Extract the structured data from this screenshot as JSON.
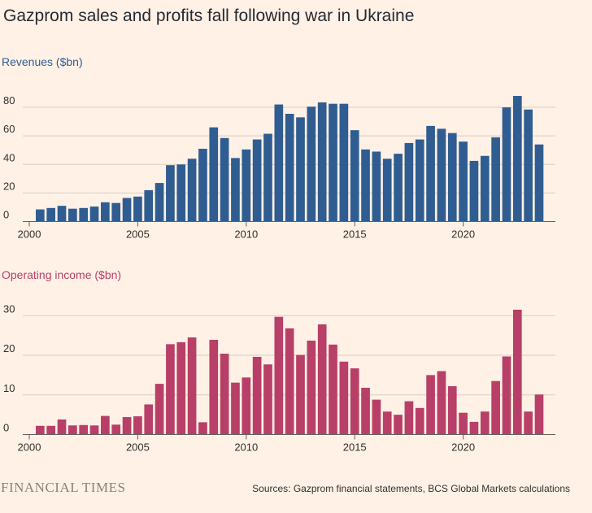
{
  "title": "Gazprom sales and profits fall following war in Ukraine",
  "source": "Sources: Gazprom financial statements, BCS Global Markets calculations",
  "logo": "FINANCIAL TIMES",
  "colors": {
    "background": "#fff1e5",
    "revenues": "#2f5d91",
    "operating_income": "#b83f68",
    "grid": "#d9cdc3",
    "axis": "#66605c"
  },
  "chart_data": [
    {
      "type": "bar",
      "title": "Revenues ($bn)",
      "x_ticks": [
        2000,
        2005,
        2010,
        2015,
        2020
      ],
      "y_ticks": [
        0,
        20,
        40,
        60,
        80
      ],
      "ylim": [
        0,
        90
      ],
      "xlim": [
        2000,
        2025
      ],
      "grid": true,
      "bar_width_years": 0.4,
      "x": [
        2000.5,
        2001,
        2001.5,
        2002,
        2002.5,
        2003,
        2003.5,
        2004,
        2004.5,
        2005,
        2005.5,
        2006,
        2006.5,
        2007,
        2007.5,
        2008,
        2008.5,
        2009,
        2009.5,
        2010,
        2010.5,
        2011,
        2011.5,
        2012,
        2012.5,
        2013,
        2013.5,
        2014,
        2014.5,
        2015,
        2015.5,
        2016,
        2016.5,
        2017,
        2017.5,
        2018,
        2018.5,
        2019,
        2019.5,
        2020,
        2020.5,
        2021,
        2021.5,
        2022,
        2022.5,
        2023,
        2023.5
      ],
      "values": [
        8.5,
        9.5,
        11,
        9,
        9.5,
        10.5,
        13.5,
        13,
        16.5,
        17.5,
        22,
        27,
        39.5,
        40,
        44,
        51,
        66,
        58.5,
        44.5,
        50.5,
        57.5,
        61.5,
        82,
        75.5,
        73,
        80.5,
        83.5,
        82.5,
        82.5,
        64,
        50.5,
        49,
        44,
        47.5,
        55,
        57.5,
        67,
        65,
        62,
        56,
        42.5,
        46,
        59,
        80,
        88,
        78.5,
        54
      ]
    },
    {
      "type": "bar",
      "title": "Operating income ($bn)",
      "x_ticks": [
        2000,
        2005,
        2010,
        2015,
        2020
      ],
      "y_ticks": [
        0,
        10,
        20,
        30
      ],
      "ylim": [
        0,
        32
      ],
      "xlim": [
        2000,
        2025
      ],
      "grid": true,
      "bar_width_years": 0.4,
      "x": [
        2000.5,
        2001,
        2001.5,
        2002,
        2002.5,
        2003,
        2003.5,
        2004,
        2004.5,
        2005,
        2005.5,
        2006,
        2006.5,
        2007,
        2007.5,
        2008,
        2008.5,
        2009,
        2009.5,
        2010,
        2010.5,
        2011,
        2011.5,
        2012,
        2012.5,
        2013,
        2013.5,
        2014,
        2014.5,
        2015,
        2015.5,
        2016,
        2016.5,
        2017,
        2017.5,
        2018,
        2018.5,
        2019,
        2019.5,
        2020,
        2020.5,
        2021,
        2021.5,
        2022,
        2022.5,
        2023,
        2023.5
      ],
      "values": [
        2.2,
        2.2,
        3.8,
        2.3,
        2.4,
        2.3,
        4.7,
        2.5,
        4.4,
        4.6,
        7.6,
        12.8,
        22.8,
        23.3,
        24.5,
        3.1,
        23.9,
        20.4,
        13.1,
        14.4,
        19.6,
        17.7,
        29.7,
        26.8,
        20.1,
        23.7,
        27.8,
        22.7,
        18.4,
        16.7,
        11.8,
        8.8,
        5.8,
        5,
        8.4,
        6.7,
        15,
        16,
        12.2,
        5.5,
        3.2,
        5.8,
        13.5,
        19.7,
        31.5,
        5.8,
        10.1
      ]
    }
  ]
}
